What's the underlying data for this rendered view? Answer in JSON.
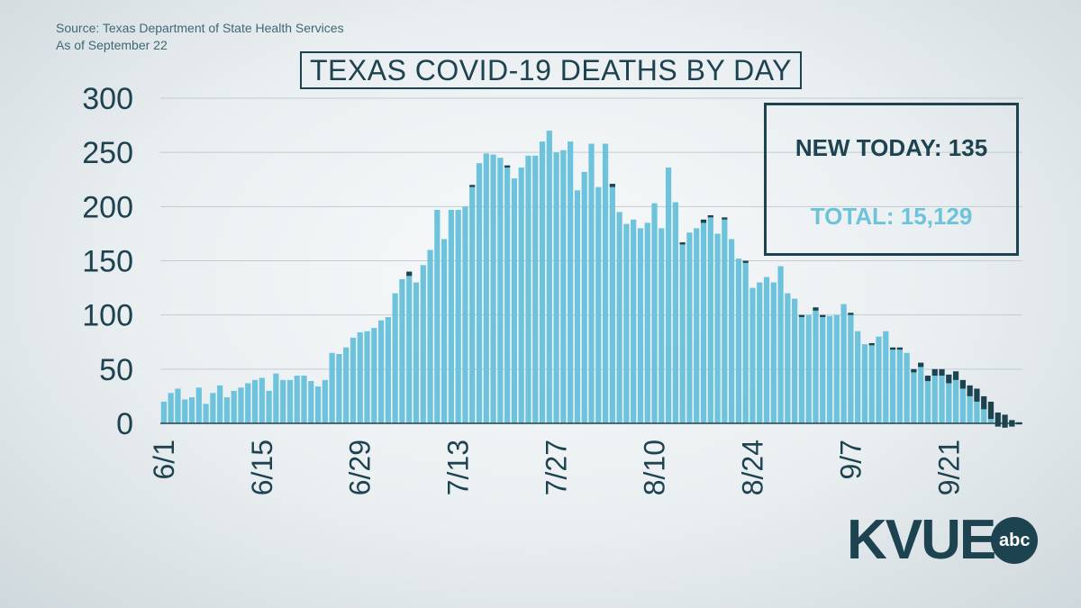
{
  "header": {
    "source_line": "Source: Texas Department of State Health Services",
    "asof_line": "As of September 22"
  },
  "callout": {
    "new_today": "NEW TODAY: 135",
    "total": "TOTAL: 15,129"
  },
  "logo": {
    "word": "KVUE",
    "badge": "abc"
  },
  "colors": {
    "bar": "#6dc3dc",
    "new_reports": "#1e4350",
    "grid": "#c3ccd0",
    "text": "#1e4350"
  },
  "chart_data": {
    "type": "bar",
    "title": "TEXAS COVID-19 DEATHS BY DAY",
    "ylim": [
      0,
      300
    ],
    "yticks": [
      0,
      50,
      100,
      150,
      200,
      250,
      300
    ],
    "xtick_labels": [
      "6/1",
      "6/15",
      "6/29",
      "7/13",
      "7/27",
      "8/10",
      "8/24",
      "9/7",
      "9/21"
    ],
    "grid": true,
    "series": [
      {
        "values": [
          20,
          28,
          32,
          22,
          24,
          33,
          18,
          28,
          35,
          24,
          30,
          33,
          37,
          40,
          42,
          30,
          46,
          40,
          40,
          44,
          44,
          39,
          34,
          40,
          65,
          64,
          70,
          79,
          84,
          85,
          88,
          95,
          98,
          120,
          133,
          140,
          130,
          146,
          160,
          197,
          170,
          197,
          197,
          200,
          220,
          240,
          249,
          248,
          245,
          238,
          226,
          236,
          247,
          247,
          260,
          270,
          250,
          252,
          260,
          215,
          232,
          258,
          218,
          258,
          221,
          195,
          184,
          188,
          180,
          185,
          203,
          180,
          236,
          204,
          167,
          176,
          180,
          188,
          192,
          175,
          190,
          170,
          152,
          150,
          125,
          130,
          135,
          130,
          145,
          120,
          115,
          100,
          100,
          107,
          100,
          99,
          100,
          110,
          102,
          85,
          73,
          74,
          80,
          85,
          70,
          70,
          65,
          50,
          56,
          44,
          50,
          50,
          45,
          48,
          40,
          35,
          32,
          25,
          20,
          10,
          8,
          3,
          1
        ],
        "recent": [
          0,
          0,
          0,
          0,
          0,
          0,
          0,
          0,
          0,
          0,
          0,
          0,
          0,
          0,
          0,
          0,
          0,
          0,
          0,
          0,
          0,
          0,
          0,
          0,
          0,
          0,
          0,
          0,
          0,
          0,
          0,
          0,
          0,
          0,
          0,
          4,
          0,
          0,
          0,
          0,
          0,
          0,
          0,
          0,
          2,
          0,
          0,
          0,
          0,
          2,
          0,
          0,
          0,
          0,
          0,
          0,
          0,
          0,
          0,
          0,
          0,
          0,
          0,
          0,
          3,
          0,
          0,
          0,
          0,
          0,
          0,
          0,
          0,
          0,
          2,
          0,
          0,
          3,
          2,
          0,
          2,
          0,
          0,
          2,
          0,
          0,
          0,
          0,
          0,
          0,
          0,
          2,
          0,
          3,
          2,
          0,
          0,
          0,
          2,
          0,
          0,
          2,
          0,
          0,
          2,
          2,
          0,
          3,
          4,
          5,
          6,
          6,
          8,
          8,
          8,
          10,
          12,
          12,
          16,
          13,
          12,
          6,
          2
        ]
      }
    ]
  }
}
